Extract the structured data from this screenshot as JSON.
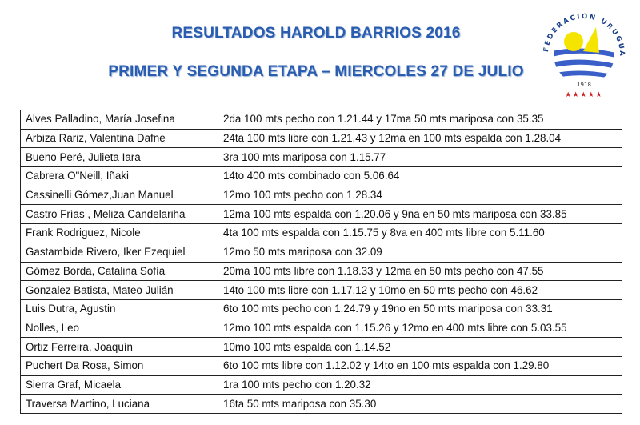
{
  "title": "RESULTADOS HAROLD BARRIOS 2016",
  "subtitle": "PRIMER Y SEGUNDA ETAPA – MIERCOLES 27 DE JULIO",
  "logo": {
    "text": "FEDERACION URUGUAYA DE NATACION",
    "year": "1918",
    "colors": {
      "blue": "#2a5db0",
      "yellow": "#f5e400",
      "red": "#d02020"
    }
  },
  "rows": [
    {
      "name": "Alves Palladino, María Josefina",
      "result": "2da 100 mts pecho con 1.21.44 y 17ma 50 mts mariposa con 35.35"
    },
    {
      "name": "Arbiza Rariz, Valentina Dafne",
      "result": "24ta 100 mts libre con 1.21.43 y 12ma en 100 mts espalda con 1.28.04"
    },
    {
      "name": "Bueno Peré, Julieta Iara",
      "result": "3ra 100 mts mariposa con 1.15.77"
    },
    {
      "name": "Cabrera O\"Neill, Iñaki",
      "result": "14to 400 mts combinado con 5.06.64"
    },
    {
      "name": "Cassinelli Gómez,Juan Manuel",
      "result": "12mo 100 mts pecho con 1.28.34"
    },
    {
      "name": "Castro Frías , Meliza Candelariha",
      "result": "12ma 100 mts espalda con 1.20.06 y 9na en 50 mts mariposa con 33.85"
    },
    {
      "name": "Frank Rodriguez, Nicole",
      "result": "4ta 100 mts espalda con 1.15.75 y 8va en 400 mts libre con 5.11.60"
    },
    {
      "name": "Gastambide Rivero, Iker Ezequiel",
      "result": "12mo 50 mts mariposa con 32.09"
    },
    {
      "name": "Gómez Borda, Catalina Sofía",
      "result": "20ma 100 mts libre con 1.18.33 y 12ma en 50 mts pecho con 47.55"
    },
    {
      "name": "Gonzalez Batista, Mateo Julián",
      "result": "14to 100 mts libre con 1.17.12 y 10mo en 50 mts pecho con 46.62"
    },
    {
      "name": "Luis Dutra, Agustin",
      "result": "6to 100 mts pecho con 1.24.79 y 19no en 50 mts mariposa con 33.31"
    },
    {
      "name": "Nolles, Leo",
      "result": "12mo 100 mts espalda con 1.15.26 y 12mo en 400 mts libre con 5.03.55"
    },
    {
      "name": "Ortiz Ferreira, Joaquín",
      "result": "10mo 100 mts espalda con 1.14.52"
    },
    {
      "name": "Puchert Da Rosa, Simon",
      "result": "6to 100 mts libre con 1.12.02 y 14to en 100 mts espalda con 1.29.80"
    },
    {
      "name": "Sierra Graf, Micaela",
      "result": "1ra 100 mts pecho con 1.20.32"
    },
    {
      "name": "Traversa Martino, Luciana",
      "result": "16ta 50 mts mariposa con 35.30"
    }
  ]
}
